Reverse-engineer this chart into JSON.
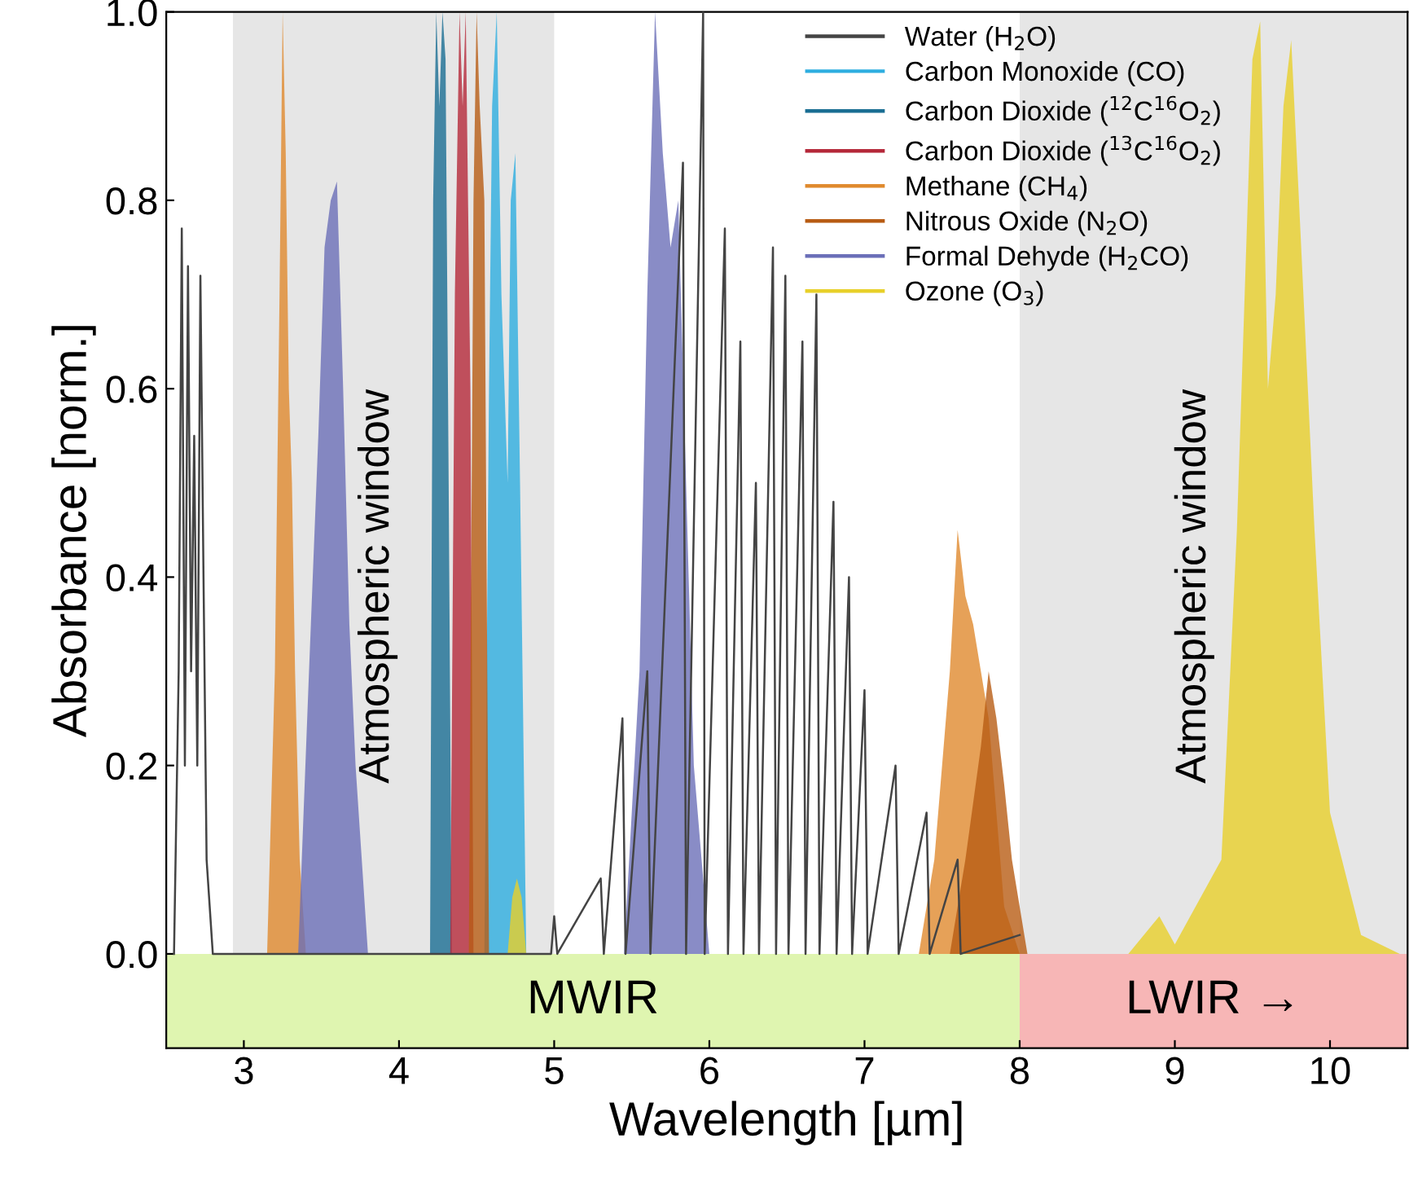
{
  "chart_data": {
    "type": "area",
    "ylabel": "Absorbance [norm.]",
    "xlabel": "Wavelength [µm]",
    "xlim": [
      2.5,
      10.5
    ],
    "ylim": [
      -0.1,
      1.0
    ],
    "xticks": [
      3,
      4,
      5,
      6,
      7,
      8,
      9,
      10
    ],
    "yticks": [
      {
        "value": 0,
        "label": "0.0"
      },
      {
        "value": 0.2,
        "label": "0.2"
      },
      {
        "value": 0.4,
        "label": "0.4"
      },
      {
        "value": 0.6,
        "label": "0.6"
      },
      {
        "value": 0.8,
        "label": "0.8"
      },
      {
        "value": 1.0,
        "label": "1.0"
      }
    ],
    "grid": false,
    "legend": "top right",
    "bands": [
      {
        "axis": "x",
        "from": 2.5,
        "to": 8.0,
        "label": "MWIR",
        "color": "#dff5b0"
      },
      {
        "axis": "x",
        "from": 8.0,
        "to": 10.5,
        "label": "LWIR →",
        "color": "#f7b6b6"
      },
      {
        "axis": "x",
        "from": 2.93,
        "to": 5.0,
        "label": "Atmospheric window",
        "color": "#e6e6e6"
      },
      {
        "axis": "x",
        "from": 8.0,
        "to": 10.5,
        "label": "Atmospheric window",
        "color": "#e6e6e6"
      }
    ],
    "series": [
      {
        "name": "Water (H$_{2}$O)",
        "type": "line",
        "color": "#444444",
        "x": [
          2.55,
          2.58,
          2.6,
          2.62,
          2.64,
          2.66,
          2.68,
          2.7,
          2.72,
          2.74,
          2.76,
          2.8,
          4.98,
          5.0,
          5.02,
          5.3,
          5.32,
          5.44,
          5.46,
          5.6,
          5.62,
          5.83,
          5.85,
          5.96,
          5.97,
          6.1,
          6.12,
          6.2,
          6.22,
          6.3,
          6.32,
          6.41,
          6.43,
          6.49,
          6.51,
          6.6,
          6.62,
          6.69,
          6.71,
          6.8,
          6.82,
          6.9,
          6.92,
          7.0,
          7.02,
          7.2,
          7.22,
          7.4,
          7.42,
          7.6,
          7.62,
          8.0
        ],
        "values": [
          0,
          0.3,
          0.77,
          0.2,
          0.73,
          0.3,
          0.55,
          0.2,
          0.72,
          0.4,
          0.1,
          0,
          0,
          0.04,
          0,
          0.08,
          0,
          0.25,
          0,
          0.3,
          0,
          0.84,
          0,
          1.0,
          0,
          0.77,
          0,
          0.65,
          0,
          0.5,
          0,
          0.75,
          0,
          0.72,
          0,
          0.65,
          0,
          0.7,
          0,
          0.48,
          0,
          0.4,
          0,
          0.28,
          0,
          0.2,
          0,
          0.15,
          0,
          0.1,
          0,
          0.02
        ]
      },
      {
        "name": "Carbon Monoxide (CO)",
        "color": "#2eaee0",
        "x": [
          4.55,
          4.58,
          4.6,
          4.63,
          4.66,
          4.7,
          4.72,
          4.75,
          4.78,
          4.82
        ],
        "values": [
          0,
          0.6,
          0.9,
          1.0,
          0.7,
          0.5,
          0.8,
          0.85,
          0.5,
          0
        ]
      },
      {
        "name": "Carbon Dioxide ($^{12}$C$^{16}$O$_{2}$)",
        "color": "#1a6e93",
        "x": [
          4.2,
          4.22,
          4.24,
          4.26,
          4.28,
          4.3,
          4.32,
          4.34
        ],
        "values": [
          0,
          0.8,
          1.0,
          0.9,
          1.0,
          0.95,
          0.5,
          0
        ]
      },
      {
        "name": "Carbon Dioxide ($^{13}$C$^{16}$O$_{2}$)",
        "color": "#b5293a",
        "x": [
          4.33,
          4.36,
          4.39,
          4.41,
          4.43,
          4.46,
          4.48
        ],
        "values": [
          0,
          0.7,
          1.0,
          0.9,
          1.0,
          0.6,
          0
        ]
      },
      {
        "name": "Methane (CH$_{4}$)",
        "color": "#e08a2e",
        "x": [
          3.15,
          3.2,
          3.23,
          3.25,
          3.27,
          3.29,
          3.31,
          3.33,
          3.36,
          3.4,
          7.35,
          7.45,
          7.55,
          7.6,
          7.65,
          7.7,
          7.75,
          7.8,
          7.85,
          7.9,
          8.0
        ],
        "values": [
          0,
          0.3,
          0.7,
          1.0,
          0.85,
          0.6,
          0.5,
          0.3,
          0.1,
          0,
          0,
          0.1,
          0.3,
          0.45,
          0.38,
          0.35,
          0.3,
          0.25,
          0.15,
          0.05,
          0
        ]
      },
      {
        "name": "Nitrous Oxide (N$_{2}$O)",
        "color": "#b85c14",
        "x": [
          4.45,
          4.48,
          4.5,
          4.52,
          4.55,
          4.58,
          7.55,
          7.65,
          7.75,
          7.8,
          7.85,
          7.9,
          7.95,
          8.05
        ],
        "values": [
          0,
          0.8,
          1.0,
          0.9,
          0.8,
          0,
          0,
          0.1,
          0.22,
          0.3,
          0.25,
          0.18,
          0.1,
          0
        ]
      },
      {
        "name": "Formal Dehyde (H$_{2}$CO)",
        "color": "#6b6fb8",
        "x": [
          3.35,
          3.42,
          3.48,
          3.52,
          3.56,
          3.6,
          3.64,
          3.68,
          3.72,
          3.8,
          5.45,
          5.55,
          5.6,
          5.65,
          5.7,
          5.75,
          5.8,
          5.85,
          5.9,
          6.0
        ],
        "values": [
          0,
          0.3,
          0.55,
          0.75,
          0.8,
          0.82,
          0.6,
          0.35,
          0.2,
          0,
          0,
          0.3,
          0.7,
          1.0,
          0.85,
          0.75,
          0.8,
          0.5,
          0.2,
          0
        ]
      },
      {
        "name": "Ozone (O$_{3}$)",
        "color": "#e8d02a",
        "x": [
          4.7,
          4.73,
          4.76,
          4.79,
          4.82,
          8.7,
          8.85,
          8.9,
          9.0,
          9.3,
          9.4,
          9.5,
          9.55,
          9.6,
          9.65,
          9.7,
          9.75,
          9.8,
          9.9,
          10.0,
          10.2,
          10.45
        ],
        "values": [
          0,
          0.06,
          0.08,
          0.06,
          0,
          0,
          0.03,
          0.04,
          0.01,
          0.1,
          0.45,
          0.95,
          0.99,
          0.6,
          0.7,
          0.9,
          0.97,
          0.8,
          0.45,
          0.15,
          0.02,
          0
        ]
      }
    ]
  }
}
